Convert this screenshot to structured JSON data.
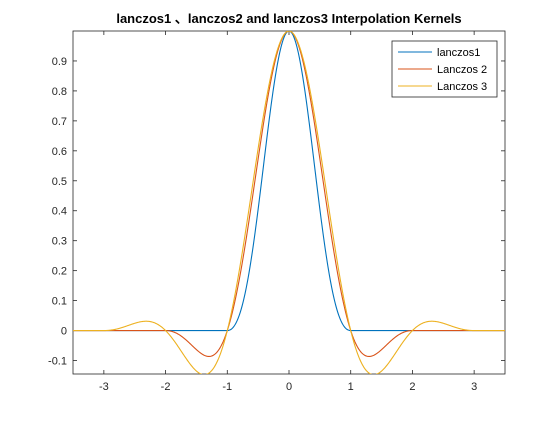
{
  "chart_data": {
    "type": "line",
    "title": "lanczos1 、lanczos2 and lanczos3 Interpolation Kernels",
    "xlabel": "",
    "ylabel": "",
    "xlim": [
      -3.5,
      3.5
    ],
    "ylim": [
      -0.145,
      1.0
    ],
    "grid": false,
    "legend_position": "top-right",
    "x_ticks": [
      -3,
      -2,
      -1,
      0,
      1,
      2,
      3
    ],
    "y_ticks": [
      -0.1,
      0,
      0.1,
      0.2,
      0.3,
      0.4,
      0.5,
      0.6,
      0.7,
      0.8,
      0.9
    ],
    "x_tick_labels": [
      "-3",
      "-2",
      "-1",
      "0",
      "1",
      "2",
      "3"
    ],
    "y_tick_labels": [
      "-0.1",
      "0",
      "0.1",
      "0.2",
      "0.3",
      "0.4",
      "0.5",
      "0.6",
      "0.7",
      "0.8",
      "0.9"
    ],
    "series": [
      {
        "name": "lanczos1",
        "a": 1,
        "color": "#0072BD",
        "x": [
          -3.5,
          -3.0,
          -2.0,
          -1.0,
          -0.75,
          -0.5,
          -0.25,
          0,
          0.25,
          0.5,
          0.75,
          1.0,
          2.0,
          3.0,
          3.5
        ],
        "y": [
          0,
          0,
          0,
          0,
          0.09,
          0.41,
          0.81,
          1.0,
          0.81,
          0.41,
          0.09,
          0,
          0,
          0,
          0
        ]
      },
      {
        "name": "Lanczos 2",
        "a": 2,
        "color": "#D95319",
        "x": [
          -3.5,
          -2.0,
          -1.75,
          -1.5,
          -1.25,
          -1.0,
          -0.75,
          -0.5,
          -0.25,
          0,
          0.25,
          0.5,
          0.75,
          1.0,
          1.25,
          1.5,
          1.75,
          2.0,
          3.5
        ],
        "y": [
          0,
          0,
          -0.03,
          -0.07,
          -0.07,
          0,
          0.23,
          0.57,
          0.89,
          1.0,
          0.89,
          0.57,
          0.23,
          0,
          -0.07,
          -0.07,
          -0.03,
          0,
          0
        ]
      },
      {
        "name": "Lanczos 3",
        "a": 3,
        "color": "#EDB120",
        "x": [
          -3.5,
          -3.0,
          -2.5,
          -2.25,
          -2.0,
          -1.5,
          -1.25,
          -1.0,
          -0.5,
          0,
          0.5,
          1.0,
          1.25,
          1.5,
          2.0,
          2.25,
          2.5,
          3.0,
          3.5
        ],
        "y": [
          0,
          0,
          0.024,
          0.03,
          0,
          -0.135,
          -0.15,
          0,
          0.61,
          1.0,
          0.61,
          0,
          -0.15,
          -0.135,
          0,
          0.03,
          0.024,
          0,
          0
        ]
      }
    ]
  }
}
